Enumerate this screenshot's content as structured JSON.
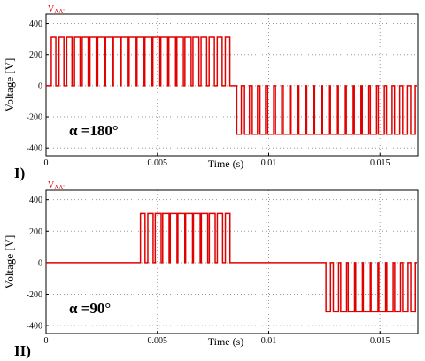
{
  "chart_data": [
    {
      "type": "line",
      "panel_label": "I)",
      "legend": "V",
      "legend_sub": "AA'",
      "annotation": "α =180°",
      "xlabel": "Time (s)",
      "ylabel": "Voltage [V]",
      "xlim": [
        0,
        0.0167
      ],
      "ylim": [
        -450,
        460
      ],
      "x_ticks": [
        0,
        0.005,
        0.01,
        0.015
      ],
      "x_tick_labels": [
        "0",
        "0.005",
        "0.01",
        "0.015"
      ],
      "y_ticks": [
        400,
        200,
        0,
        -200,
        -400
      ],
      "y_tick_labels": [
        "400",
        "200",
        "0",
        "-200",
        "-400"
      ],
      "grid": true,
      "color": "#e00000",
      "amplitude": 312,
      "pulse_train": {
        "positive": {
          "start": 0.00016,
          "end": 0.00833,
          "pulses": 23
        },
        "negative": {
          "start": 0.00849,
          "end": 0.01666,
          "pulses": 23
        }
      }
    },
    {
      "type": "line",
      "panel_label": "II)",
      "legend": "V",
      "legend_sub": "AA'",
      "annotation": "α =90°",
      "xlabel": "Time (s)",
      "ylabel": "Voltage [V]",
      "xlim": [
        0,
        0.0167
      ],
      "ylim": [
        -450,
        460
      ],
      "x_ticks": [
        0,
        0.005,
        0.01,
        0.015
      ],
      "x_tick_labels": [
        "0",
        "0.005",
        "0.01",
        "0.015"
      ],
      "y_ticks": [
        400,
        200,
        0,
        -200,
        -400
      ],
      "y_tick_labels": [
        "400",
        "200",
        "0",
        "-200",
        "-400"
      ],
      "grid": true,
      "color": "#e00000",
      "amplitude": 312,
      "pulse_train": {
        "positive": {
          "start": 0.00417,
          "end": 0.00833,
          "pulses": 12
        },
        "negative": {
          "start": 0.0125,
          "end": 0.01666,
          "pulses": 12
        }
      }
    }
  ]
}
